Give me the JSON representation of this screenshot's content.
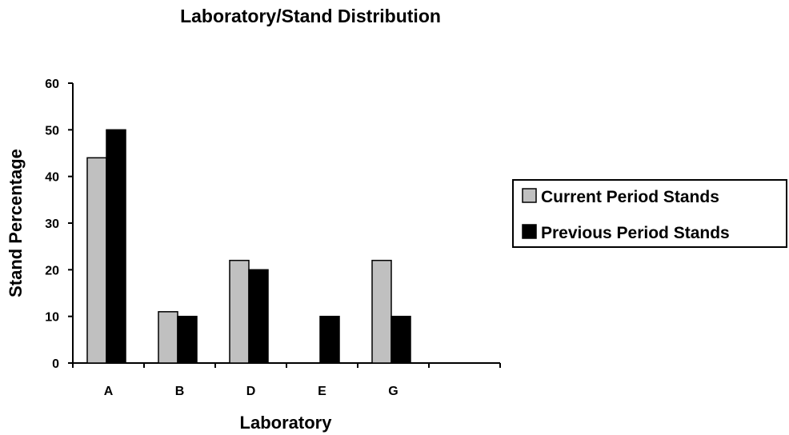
{
  "chart_data": {
    "type": "bar",
    "title": "Laboratory/Stand Distribution",
    "xlabel": "Laboratory",
    "ylabel": "Stand Percentage",
    "categories": [
      "A",
      "B",
      "D",
      "E",
      "G",
      ""
    ],
    "series": [
      {
        "name": "Current Period Stands",
        "values": [
          44,
          11,
          22,
          0,
          22,
          0
        ],
        "color": "#c0c0c0"
      },
      {
        "name": "Previous Period Stands",
        "values": [
          50,
          10,
          20,
          10,
          10,
          0
        ],
        "color": "#000000"
      }
    ],
    "ylim": [
      0,
      60
    ],
    "yticks": [
      0,
      10,
      20,
      30,
      40,
      50,
      60
    ],
    "grid": false,
    "legend": "right"
  }
}
